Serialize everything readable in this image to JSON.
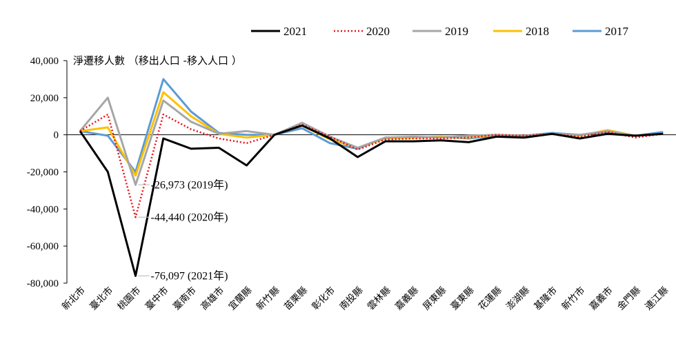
{
  "chart_data": {
    "type": "line",
    "ylabel": "淨遷移人數 （移出人口 -移入人口 ）",
    "ylim": [
      -80000,
      40000
    ],
    "yticks": [
      "40,000",
      "20,000",
      "0",
      "-20,000",
      "-40,000",
      "-60,000",
      "-80,000"
    ],
    "ytick_values": [
      40000,
      20000,
      0,
      -20000,
      -40000,
      -60000,
      -80000
    ],
    "categories": [
      "新北市",
      "臺北市",
      "桃園市",
      "臺中市",
      "臺南市",
      "高雄市",
      "宜蘭縣",
      "新竹縣",
      "苗栗縣",
      "彰化市",
      "南投縣",
      "雲林縣",
      "嘉義縣",
      "屏東縣",
      "臺東縣",
      "花蓮縣",
      "澎湖縣",
      "基隆市",
      "新竹市",
      "嘉義市",
      "金門縣",
      "連江縣"
    ],
    "legend_position": "top-right",
    "grid": false,
    "series": [
      {
        "name": "2021",
        "color": "#000000",
        "style": "solid",
        "values": [
          2000,
          -20000,
          -76097,
          -2000,
          -7500,
          -7000,
          -16500,
          0,
          5000,
          -2000,
          -12000,
          -3500,
          -3500,
          -3000,
          -4000,
          -1000,
          -1500,
          500,
          -2000,
          500,
          -500,
          500
        ]
      },
      {
        "name": "2020",
        "color": "#e8141c",
        "style": "dotted",
        "values": [
          2000,
          11000,
          -44440,
          11000,
          3000,
          -2000,
          -4500,
          0,
          5500,
          -1000,
          -8000,
          -2500,
          -2000,
          -2000,
          -1500,
          0,
          -500,
          500,
          -1000,
          1500,
          -1500,
          500
        ]
      },
      {
        "name": "2019",
        "color": "#a6a6a6",
        "style": "solid",
        "values": [
          2000,
          20000,
          -26973,
          18500,
          7000,
          500,
          2000,
          0,
          6500,
          -1000,
          -7000,
          -1500,
          -1000,
          -1500,
          -500,
          0,
          -500,
          500,
          0,
          2000,
          -500,
          500
        ]
      },
      {
        "name": "2018",
        "color": "#ffc000",
        "style": "solid",
        "values": [
          2000,
          4000,
          -22000,
          23000,
          10000,
          500,
          -1500,
          0,
          5000,
          -2500,
          -7000,
          -2000,
          -1500,
          -1000,
          -1500,
          0,
          -500,
          500,
          -500,
          2500,
          -500,
          500
        ]
      },
      {
        "name": "2017",
        "color": "#5b9bd5",
        "style": "solid",
        "values": [
          2000,
          -500,
          -20000,
          30000,
          12500,
          1000,
          0,
          0,
          3500,
          -4500,
          -7500,
          -1500,
          -1500,
          -1000,
          -2000,
          -500,
          -500,
          1000,
          0,
          1500,
          -500,
          1500
        ]
      }
    ],
    "annotations": [
      {
        "text": "-26,973 (2019年)",
        "category_index": 2,
        "value": -26973
      },
      {
        "text": "-44,440 (2020年)",
        "category_index": 2,
        "value": -44440
      },
      {
        "text": "-76,097 (2021年)",
        "category_index": 2,
        "value": -76097
      }
    ]
  }
}
